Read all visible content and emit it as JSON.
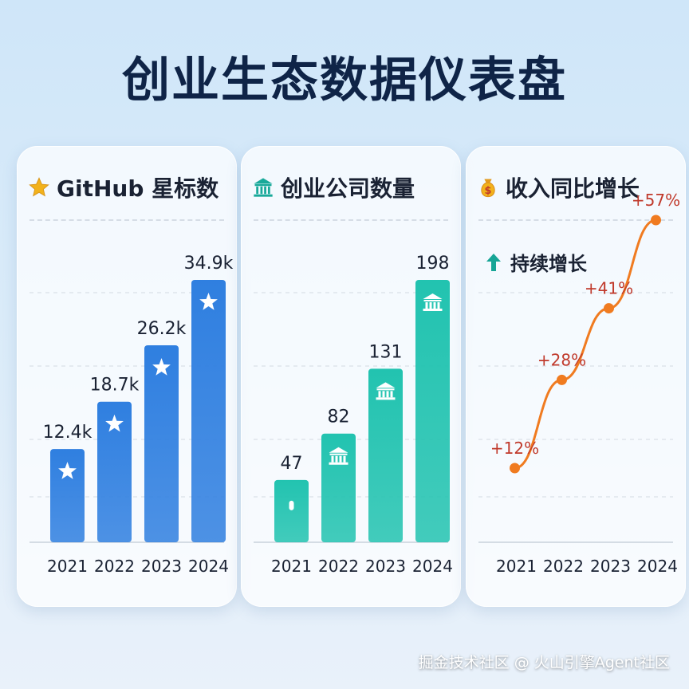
{
  "title": "创业生态数据仪表盘",
  "footer": "掘金技术社区 @ 火山引擎Agent社区",
  "cards": {
    "stars": {
      "title": "GitHub 星标数",
      "icon": "star-icon",
      "color": "#2f7fe0",
      "icon_color": "#f2b21b"
    },
    "companies": {
      "title": "创业公司数量",
      "icon": "building-icon",
      "color": "#22c3b0",
      "icon_color": "#19a99a"
    },
    "revenue": {
      "title": "收入同比增长",
      "icon": "money-bag-icon",
      "subtitle": "持续增长",
      "subtitle_icon": "arrow-up-icon",
      "color": "#f07b20",
      "label_color": "#c0392b",
      "arrow_color": "#16a596"
    }
  },
  "chart_data": [
    {
      "type": "bar",
      "title": "GitHub 星标数",
      "categories": [
        "2021",
        "2022",
        "2023",
        "2024"
      ],
      "values": [
        12.4,
        18.7,
        26.2,
        34.9
      ],
      "labels": [
        "12.4k",
        "18.7k",
        "26.2k",
        "34.9k"
      ],
      "unit": "k",
      "grid": true
    },
    {
      "type": "bar",
      "title": "创业公司数量",
      "categories": [
        "2021",
        "2022",
        "2023",
        "2024"
      ],
      "values": [
        47,
        82,
        131,
        198
      ],
      "labels": [
        "47",
        "82",
        "131",
        "198"
      ],
      "grid": true
    },
    {
      "type": "line",
      "title": "收入同比增长",
      "categories": [
        "2021",
        "2022",
        "2023",
        "2024"
      ],
      "values": [
        12,
        28,
        41,
        57
      ],
      "labels": [
        "+12%",
        "+28%",
        "+41%",
        "+57%"
      ],
      "unit": "%",
      "grid": true
    }
  ]
}
